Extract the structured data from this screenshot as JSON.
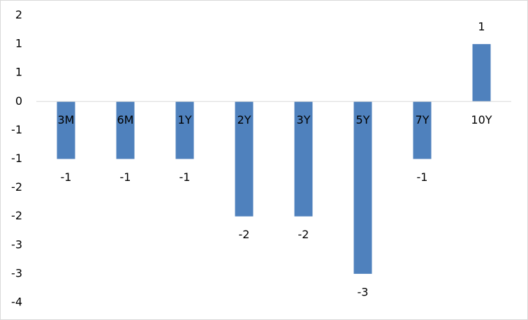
{
  "chart_data": {
    "type": "bar",
    "categories": [
      "3M",
      "6M",
      "1Y",
      "2Y",
      "3Y",
      "5Y",
      "7Y",
      "10Y"
    ],
    "values": [
      -1,
      -1,
      -1,
      -2,
      -2,
      -3,
      -1,
      1
    ],
    "color": "#4f81bd",
    "ylim": [
      -3.5,
      1.5
    ],
    "yticks": [
      {
        "value": 1.5,
        "label": "2"
      },
      1,
      {
        "value": 0.5,
        "label": "1"
      },
      0,
      {
        "value": -0.5,
        "label": "-1"
      },
      -1,
      {
        "value": -1.5,
        "label": "-2"
      },
      -2,
      {
        "value": -2.5,
        "label": "-3"
      },
      -3,
      {
        "value": -3.5,
        "label": "-4"
      }
    ],
    "grid": false
  }
}
